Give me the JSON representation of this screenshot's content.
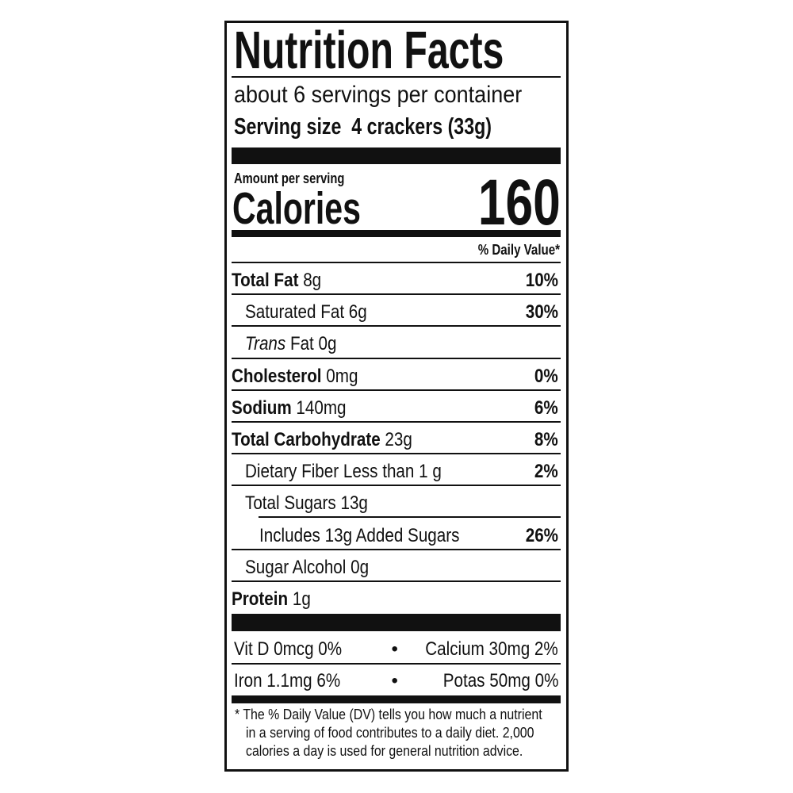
{
  "title": "Nutrition Facts",
  "servings_per_container": "about 6 servings per container",
  "serving_size": {
    "label": "Serving size",
    "value": "4 crackers (33g)"
  },
  "amount_per_serving": "Amount per serving",
  "calories": {
    "label": "Calories",
    "value": "160"
  },
  "daily_value_header": "% Daily Value*",
  "nutrients": [
    {
      "name": "Total Fat",
      "amount": "8g",
      "dv": "10%"
    },
    {
      "name": "Saturated Fat",
      "amount": "6g",
      "dv": "30%"
    },
    {
      "name_italic": "Trans",
      "name": "Fat",
      "amount": "0g"
    },
    {
      "name": "Cholesterol",
      "amount": "0mg",
      "dv": "0%"
    },
    {
      "name": "Sodium",
      "amount": "140mg",
      "dv": "6%"
    },
    {
      "name": "Total Carbohydrate",
      "amount": "23g",
      "dv": "8%"
    },
    {
      "name": "Dietary Fiber",
      "amount": "Less than 1 g",
      "dv": "2%"
    },
    {
      "name": "Total Sugars",
      "amount": "13g"
    },
    {
      "name": "Includes 13g Added Sugars",
      "dv": "26%"
    },
    {
      "name": "Sugar Alcohol",
      "amount": "0g"
    },
    {
      "name": "Protein",
      "amount": "1g"
    }
  ],
  "vitamins": [
    {
      "left": "Vit D 0mcg 0%",
      "right": "Calcium 30mg 2%"
    },
    {
      "left": "Iron 1.1mg 6%",
      "right": "Potas 50mg 0%"
    }
  ],
  "separator": "•",
  "footnote": [
    "* The % Daily Value (DV) tells you how much a nutrient",
    "in a serving of food contributes to a daily diet. 2,000",
    "calories a day is used for general nutrition advice."
  ]
}
